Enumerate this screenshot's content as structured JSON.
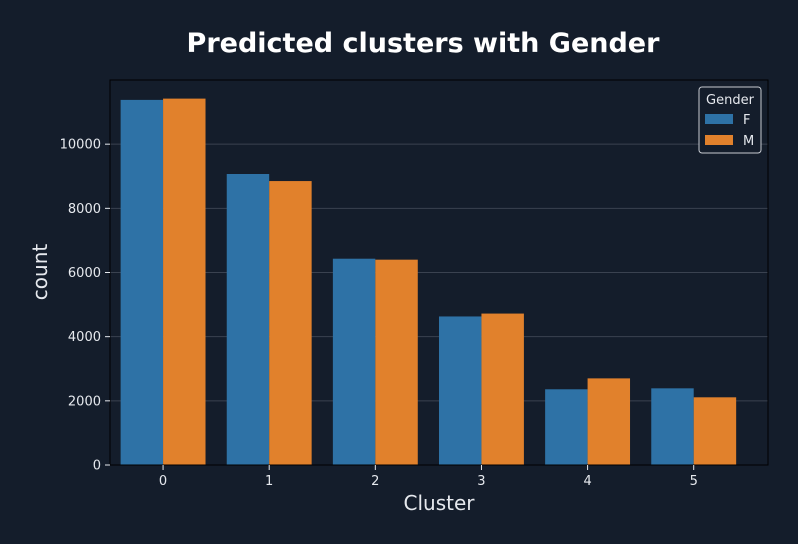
{
  "chart_data": {
    "type": "bar",
    "title": "Predicted clusters with Gender",
    "xlabel": "Cluster",
    "ylabel": "count",
    "categories": [
      "0",
      "1",
      "2",
      "3",
      "4",
      "5"
    ],
    "series": [
      {
        "name": "F",
        "values": [
          11380,
          9070,
          6430,
          4630,
          2360,
          2390
        ],
        "color": "#2e72a6"
      },
      {
        "name": "M",
        "values": [
          11420,
          8850,
          6400,
          4720,
          2700,
          2110
        ],
        "color": "#e1812c"
      }
    ],
    "ylim": [
      0,
      12000
    ],
    "yticks": [
      0,
      2000,
      4000,
      6000,
      8000,
      10000
    ],
    "grid": true,
    "legend": {
      "title": "Gender",
      "placement": "top-right"
    },
    "colors": {
      "background": "#141d2b",
      "text": "#e6e9ee",
      "grid": "#3a4250",
      "axis": "#000000"
    }
  }
}
